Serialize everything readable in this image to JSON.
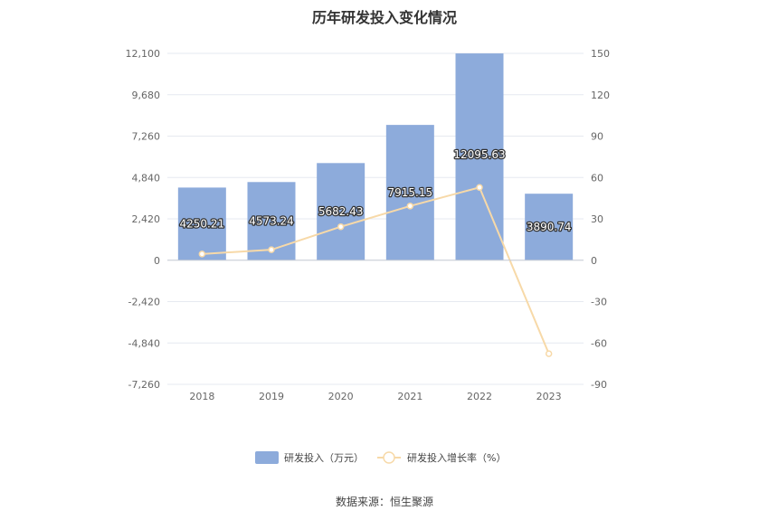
{
  "title": "历年研发投入变化情况",
  "source": "数据来源：恒生聚源",
  "chart_data": {
    "type": "bar+line",
    "categories": [
      "2018",
      "2019",
      "2020",
      "2021",
      "2022",
      "2023"
    ],
    "series": [
      {
        "name": "研发投入（万元）",
        "type": "bar",
        "axis": "left",
        "values": [
          4250.21,
          4573.24,
          5682.43,
          7915.15,
          12095.63,
          3890.74
        ],
        "labels": [
          "4250.21",
          "4573.24",
          "5682.43",
          "7915.15",
          "12095.63",
          "3890.74"
        ],
        "color": "#8dabdb"
      },
      {
        "name": "研发投入增长率（%）",
        "type": "line",
        "axis": "right",
        "values": [
          4.5,
          7.6,
          24.3,
          39.3,
          52.8,
          -67.8
        ],
        "color": "#f7d9a8"
      }
    ],
    "y_left": {
      "ticks": [
        "12,100",
        "9,680",
        "7,260",
        "4,840",
        "2,420",
        "0",
        "-2,420",
        "-4,840",
        "-7,260"
      ],
      "min": -7260,
      "max": 12100
    },
    "y_right": {
      "ticks": [
        "150",
        "120",
        "90",
        "60",
        "30",
        "0",
        "-30",
        "-60",
        "-90"
      ],
      "min": -90,
      "max": 150
    },
    "grid": true,
    "legend_position": "bottom"
  }
}
